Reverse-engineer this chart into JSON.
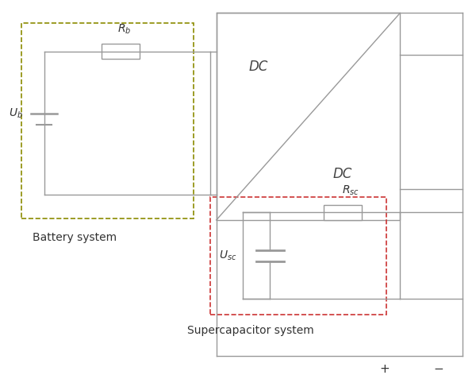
{
  "bg_color": "#ffffff",
  "line_color": "#999999",
  "battery_box_color": "#8B8B00",
  "sc_box_color": "#cc3333",
  "battery_label": "Battery system",
  "sc_label": "Supercapacitor system",
  "plus_label": "+",
  "minus_label": "−",
  "DC_label1": "DC",
  "DC_label2": "DC"
}
